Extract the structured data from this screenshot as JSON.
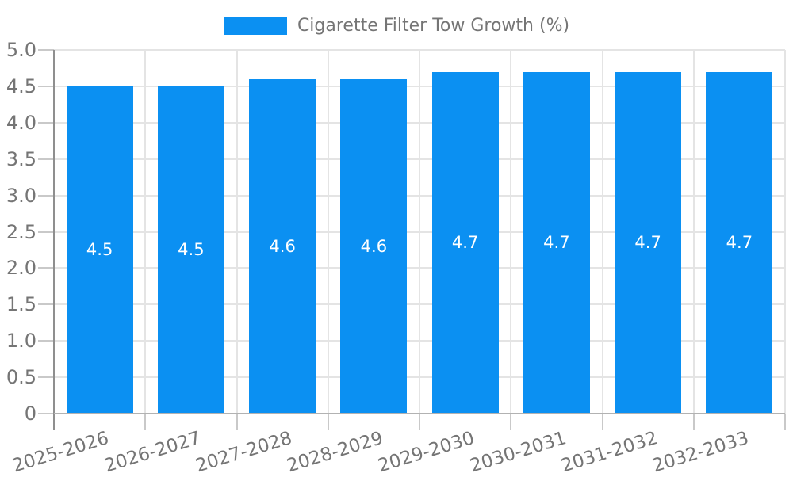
{
  "chart_data": {
    "type": "bar",
    "title": "Cigarette Filter Tow Growth (%)",
    "legend": {
      "label": "Cigarette Filter Tow Growth (%)",
      "position": "top-center"
    },
    "categories": [
      "2025-2026",
      "2026-2027",
      "2027-2028",
      "2028-2029",
      "2029-2030",
      "2030-2031",
      "2031-2032",
      "2032-2033"
    ],
    "values": [
      4.5,
      4.5,
      4.6,
      4.6,
      4.7,
      4.7,
      4.7,
      4.7
    ],
    "value_labels": [
      "4.5",
      "4.5",
      "4.6",
      "4.6",
      "4.7",
      "4.7",
      "4.7",
      "4.7"
    ],
    "xlabel": "",
    "ylabel": "",
    "ylim": [
      0,
      5
    ],
    "ytick_values": [
      0,
      0.5,
      1,
      1.5,
      2,
      2.5,
      3,
      3.5,
      4,
      4.5,
      5
    ],
    "ytick_labels": [
      "0",
      "0.5",
      "1.0",
      "1.5",
      "2.0",
      "2.5",
      "3.0",
      "3.5",
      "4.0",
      "4.5",
      "5.0"
    ],
    "grid": true,
    "colors": {
      "bar": "#0b90f2",
      "bar_label": "#ffffff",
      "tick_text": "#757575",
      "grid": "#e4e4e4",
      "y_axis": "#8f8f8f",
      "x_axis": "#b2b2b2",
      "tick_mark": "#c9c9c9",
      "background": "#ffffff"
    }
  }
}
